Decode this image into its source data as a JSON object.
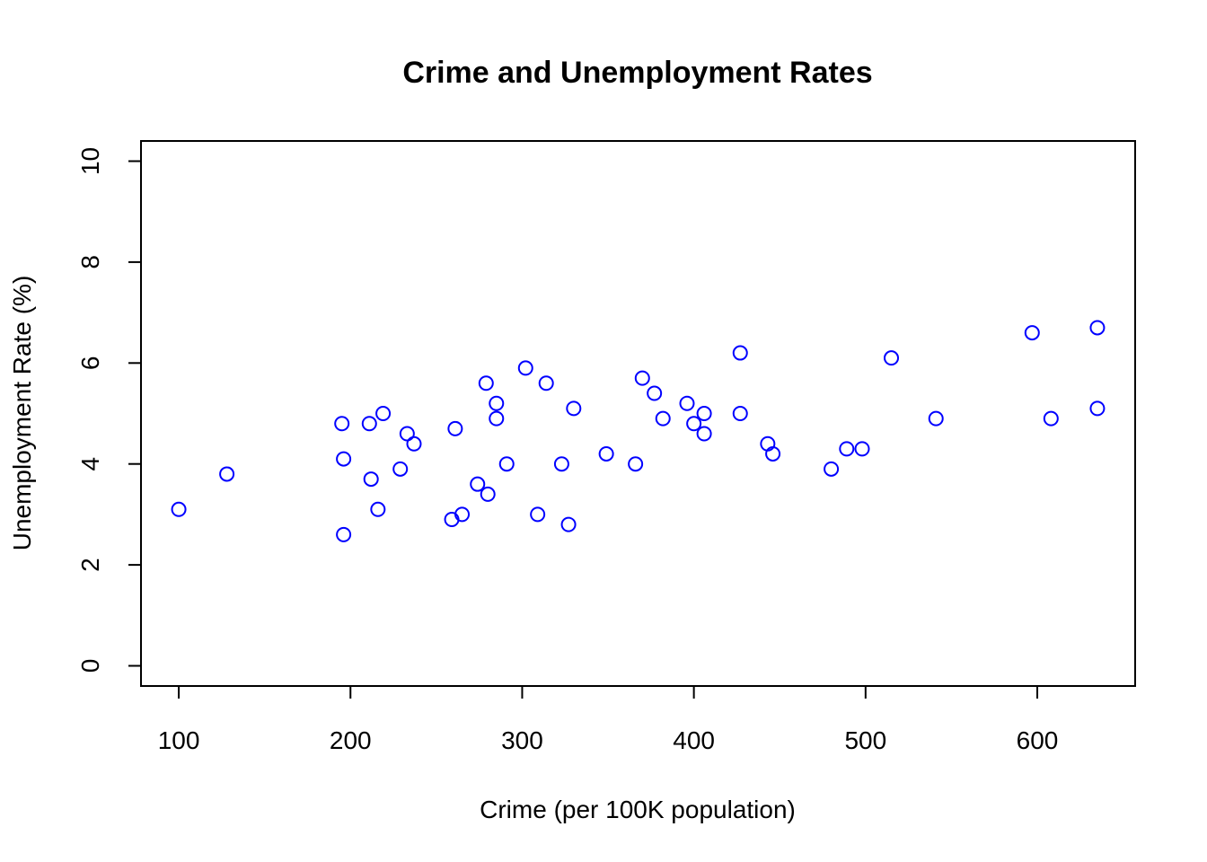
{
  "chart_data": {
    "type": "scatter",
    "title": "Crime and Unemployment Rates",
    "xlabel": "Crime (per 100K population)",
    "ylabel": "Unemployment Rate (%)",
    "xlim": [
      78,
      657
    ],
    "ylim": [
      -0.4,
      10.4
    ],
    "xticks": [
      100,
      200,
      300,
      400,
      500,
      600
    ],
    "yticks": [
      0,
      2,
      4,
      6,
      8,
      10
    ],
    "grid": false,
    "point_color": "#0000ff",
    "marker": "open-circle",
    "points": [
      {
        "x": 100,
        "y": 3.1
      },
      {
        "x": 128,
        "y": 3.8
      },
      {
        "x": 195,
        "y": 4.8
      },
      {
        "x": 196,
        "y": 4.1
      },
      {
        "x": 196,
        "y": 2.6
      },
      {
        "x": 211,
        "y": 4.8
      },
      {
        "x": 212,
        "y": 3.7
      },
      {
        "x": 216,
        "y": 3.1
      },
      {
        "x": 219,
        "y": 5.0
      },
      {
        "x": 229,
        "y": 3.9
      },
      {
        "x": 233,
        "y": 4.6
      },
      {
        "x": 237,
        "y": 4.4
      },
      {
        "x": 259,
        "y": 2.9
      },
      {
        "x": 261,
        "y": 4.7
      },
      {
        "x": 265,
        "y": 3.0
      },
      {
        "x": 274,
        "y": 3.6
      },
      {
        "x": 279,
        "y": 5.6
      },
      {
        "x": 280,
        "y": 3.4
      },
      {
        "x": 285,
        "y": 5.2
      },
      {
        "x": 285,
        "y": 4.9
      },
      {
        "x": 291,
        "y": 4.0
      },
      {
        "x": 302,
        "y": 5.9
      },
      {
        "x": 309,
        "y": 3.0
      },
      {
        "x": 314,
        "y": 5.6
      },
      {
        "x": 323,
        "y": 4.0
      },
      {
        "x": 327,
        "y": 2.8
      },
      {
        "x": 330,
        "y": 5.1
      },
      {
        "x": 349,
        "y": 4.2
      },
      {
        "x": 366,
        "y": 4.0
      },
      {
        "x": 370,
        "y": 5.7
      },
      {
        "x": 377,
        "y": 5.4
      },
      {
        "x": 382,
        "y": 4.9
      },
      {
        "x": 396,
        "y": 5.2
      },
      {
        "x": 400,
        "y": 4.8
      },
      {
        "x": 406,
        "y": 5.0
      },
      {
        "x": 406,
        "y": 4.6
      },
      {
        "x": 427,
        "y": 6.2
      },
      {
        "x": 427,
        "y": 5.0
      },
      {
        "x": 443,
        "y": 4.4
      },
      {
        "x": 446,
        "y": 4.2
      },
      {
        "x": 480,
        "y": 3.9
      },
      {
        "x": 489,
        "y": 4.3
      },
      {
        "x": 498,
        "y": 4.3
      },
      {
        "x": 515,
        "y": 6.1
      },
      {
        "x": 541,
        "y": 4.9
      },
      {
        "x": 597,
        "y": 6.6
      },
      {
        "x": 608,
        "y": 4.9
      },
      {
        "x": 635,
        "y": 6.7
      },
      {
        "x": 635,
        "y": 5.1
      }
    ]
  }
}
